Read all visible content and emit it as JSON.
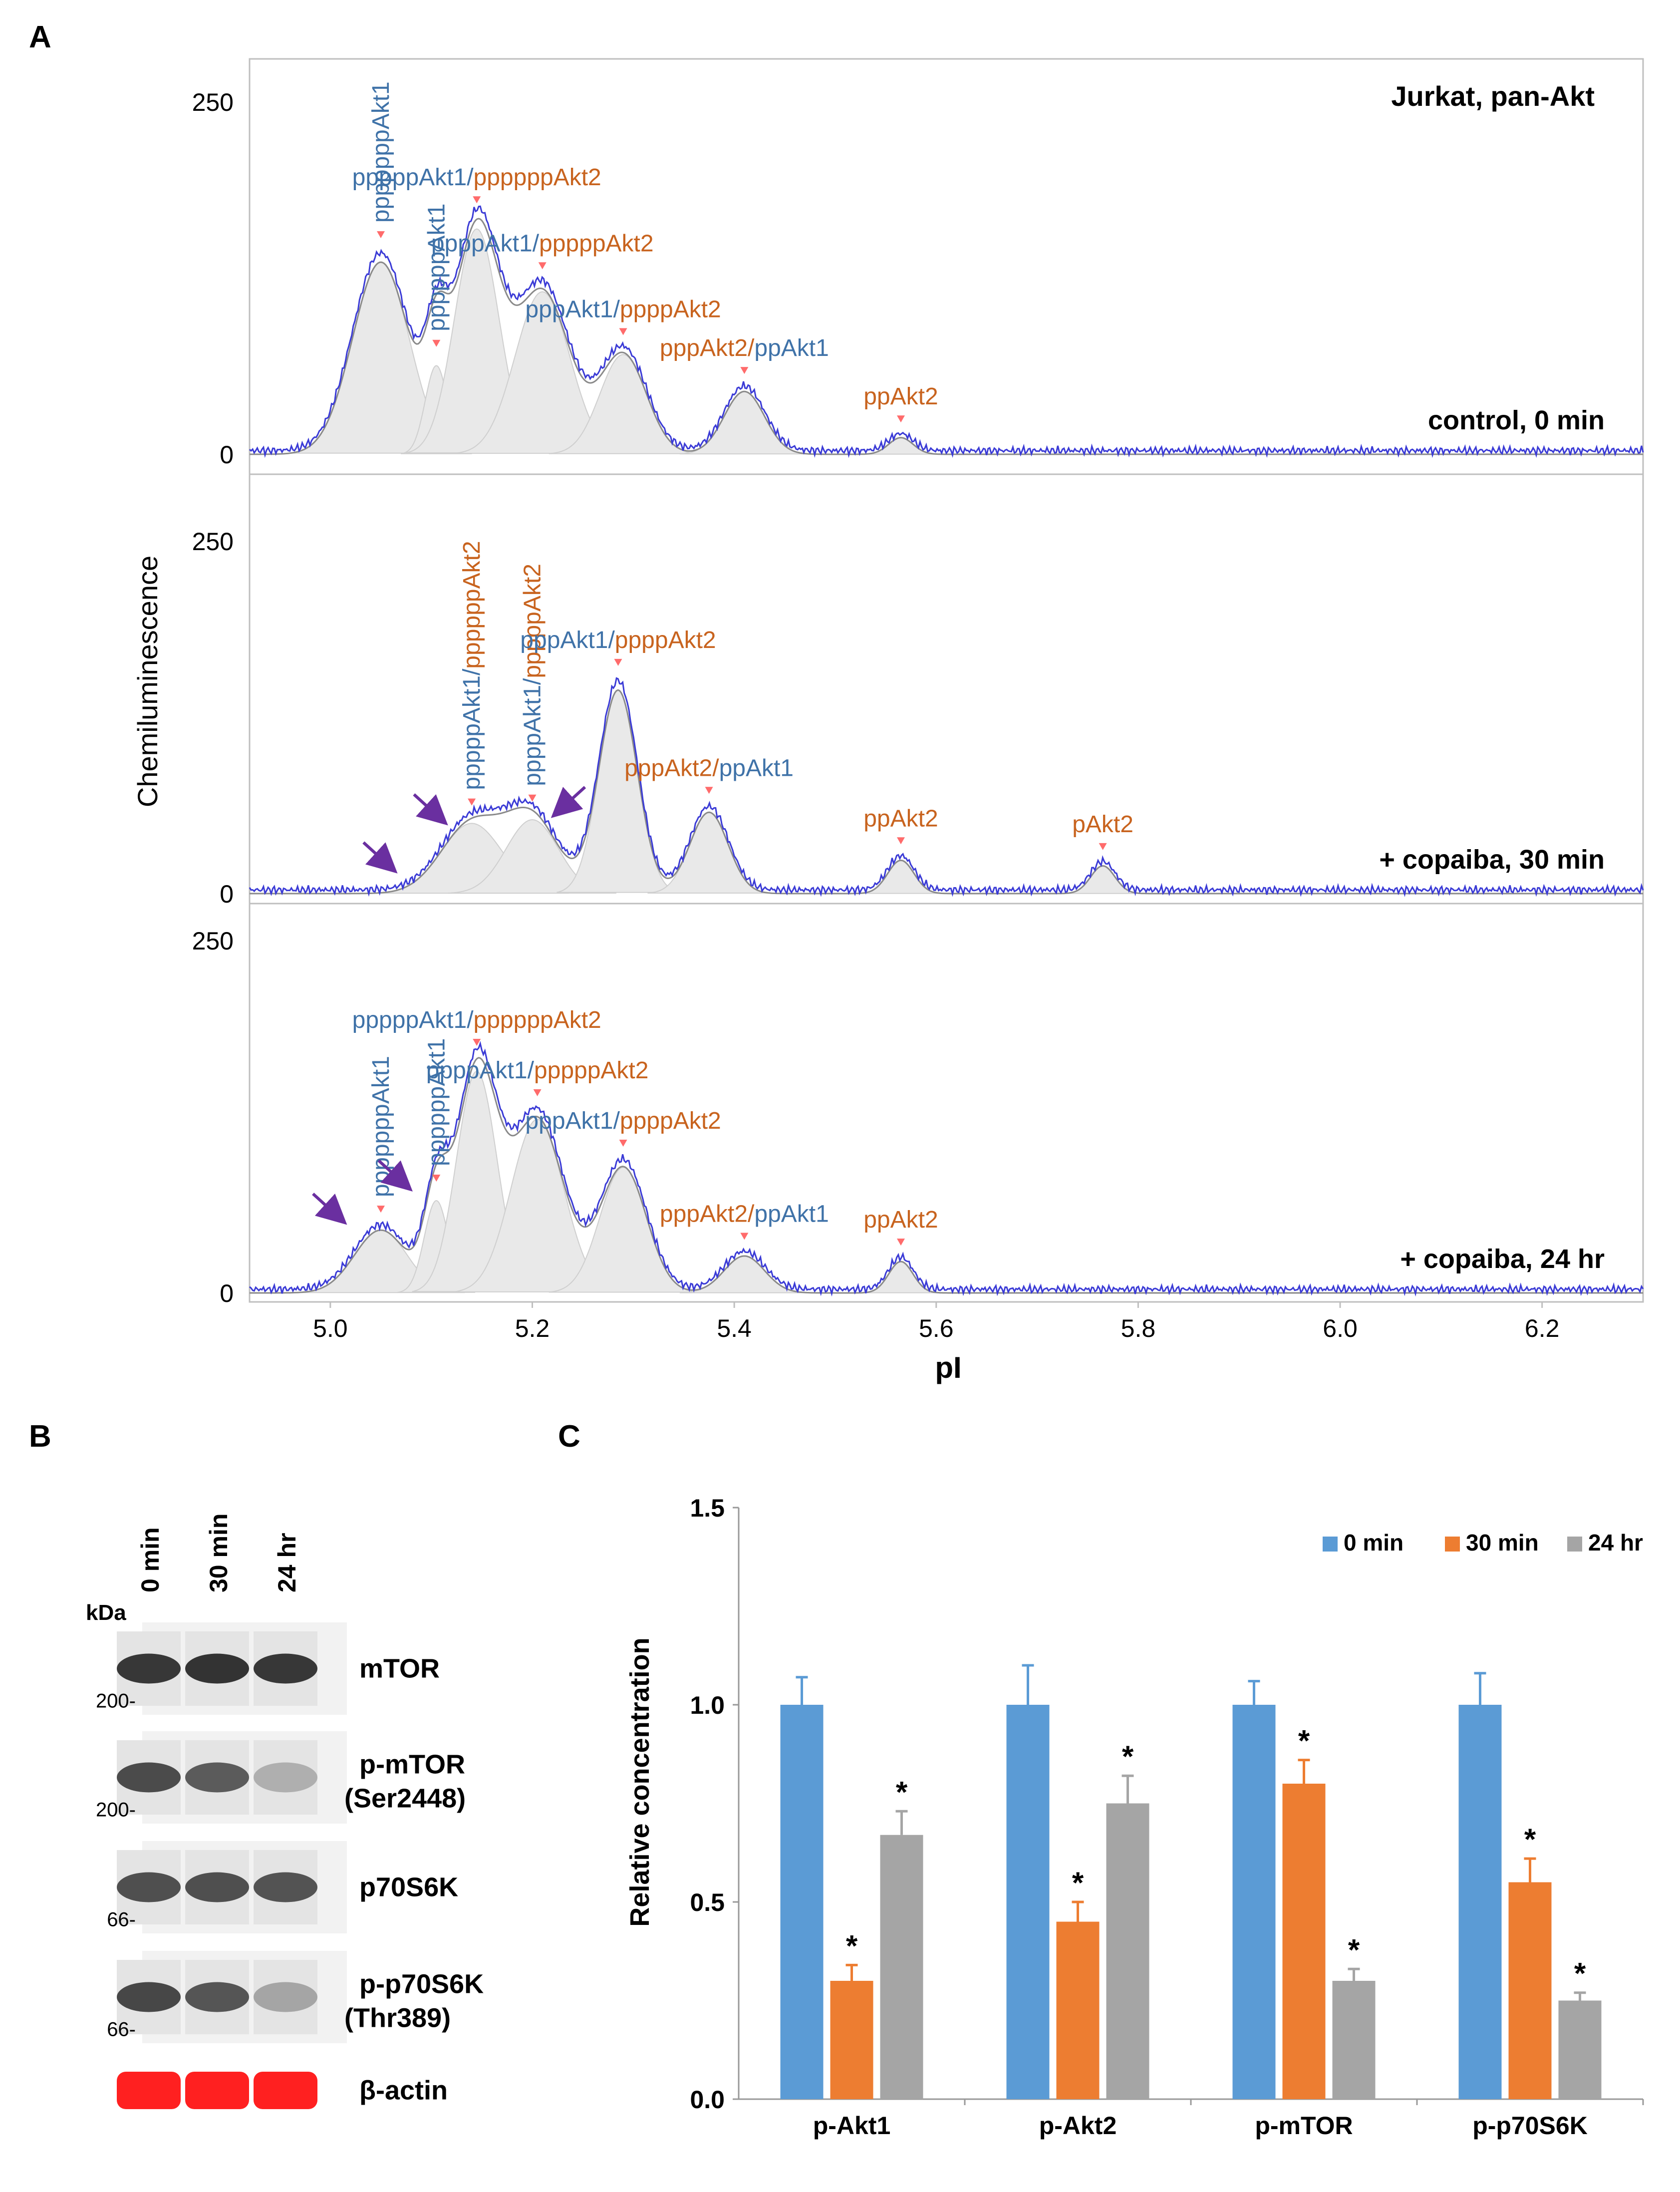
{
  "colors": {
    "akt1": "#3f72a8",
    "akt2": "#c8631e",
    "trace": "#3b3bd6",
    "fit": "#8a8a8a",
    "peak_fill": "#e9e9e9",
    "arrow": "#6a2fa0",
    "marker": "#ff6b6b",
    "bar_0min": "#5b9bd5",
    "bar_30min": "#ed7d31",
    "bar_24hr": "#a5a5a5",
    "actin": "#ff2020"
  },
  "panel_a": {
    "letter": "A",
    "ylabel": "Chemiluminescence",
    "xlabel": "pI",
    "cell_label": "Jurkat, pan-Akt",
    "x_ticks": [
      "5.0",
      "5.2",
      "5.4",
      "5.6",
      "5.8",
      "6.0",
      "6.2"
    ],
    "xlim": [
      4.92,
      6.3
    ],
    "y_top_label": "250",
    "y_bottom_label": "0",
    "subpanels": [
      {
        "condition": "control, 0 min",
        "peaks": [
          {
            "pI": 5.05,
            "h": 0.52,
            "w": 0.028
          },
          {
            "pI": 5.105,
            "h": 0.24,
            "w": 0.011
          },
          {
            "pI": 5.145,
            "h": 0.61,
            "w": 0.022
          },
          {
            "pI": 5.21,
            "h": 0.44,
            "w": 0.027
          },
          {
            "pI": 5.29,
            "h": 0.27,
            "w": 0.023
          },
          {
            "pI": 5.41,
            "h": 0.17,
            "w": 0.02
          },
          {
            "pI": 5.565,
            "h": 0.045,
            "w": 0.012
          }
        ],
        "labels": [
          {
            "pI": 5.05,
            "vertical": true,
            "parts": [
              {
                "t": "pppppppAkt1",
                "c": "akt1"
              }
            ]
          },
          {
            "pI": 5.105,
            "vertical": true,
            "parts": [
              {
                "t": "ppppppAkt1",
                "c": "akt1"
              }
            ]
          },
          {
            "pI": 5.145,
            "vertical": false,
            "parts": [
              {
                "t": "pppppAkt1",
                "c": "akt1"
              },
              {
                "t": "/",
                "c": "akt1"
              },
              {
                "t": "ppppppAkt2",
                "c": "akt2"
              }
            ]
          },
          {
            "pI": 5.21,
            "vertical": false,
            "parts": [
              {
                "t": "ppppAkt1",
                "c": "akt1"
              },
              {
                "t": "/",
                "c": "akt1"
              },
              {
                "t": "pppppAkt2",
                "c": "akt2"
              }
            ]
          },
          {
            "pI": 5.29,
            "vertical": false,
            "parts": [
              {
                "t": "pppAkt1",
                "c": "akt1"
              },
              {
                "t": "/",
                "c": "akt1"
              },
              {
                "t": "ppppAkt2",
                "c": "akt2"
              }
            ]
          },
          {
            "pI": 5.41,
            "vertical": false,
            "parts": [
              {
                "t": "pppAkt2",
                "c": "akt2"
              },
              {
                "t": "/",
                "c": "akt2"
              },
              {
                "t": "ppAkt1",
                "c": "akt1"
              }
            ]
          },
          {
            "pI": 5.565,
            "vertical": false,
            "parts": [
              {
                "t": "ppAkt2",
                "c": "akt2"
              }
            ]
          }
        ],
        "arrows": []
      },
      {
        "condition": "+ copaiba,  30 min",
        "peaks": [
          {
            "pI": 5.14,
            "h": 0.19,
            "w": 0.03
          },
          {
            "pI": 5.2,
            "h": 0.2,
            "w": 0.026
          },
          {
            "pI": 5.285,
            "h": 0.55,
            "w": 0.019
          },
          {
            "pI": 5.375,
            "h": 0.22,
            "w": 0.019
          },
          {
            "pI": 5.565,
            "h": 0.09,
            "w": 0.013
          },
          {
            "pI": 5.765,
            "h": 0.075,
            "w": 0.012
          }
        ],
        "labels": [
          {
            "pI": 5.14,
            "vertical": true,
            "parts": [
              {
                "t": "pppppAkt1",
                "c": "akt1"
              },
              {
                "t": "/",
                "c": "akt1"
              },
              {
                "t": "ppppppAkt2",
                "c": "akt2"
              }
            ]
          },
          {
            "pI": 5.2,
            "vertical": true,
            "parts": [
              {
                "t": "ppppAkt1",
                "c": "akt1"
              },
              {
                "t": "/",
                "c": "akt1"
              },
              {
                "t": "pppppAkt2",
                "c": "akt2"
              }
            ]
          },
          {
            "pI": 5.285,
            "vertical": false,
            "parts": [
              {
                "t": "pppAkt1",
                "c": "akt1"
              },
              {
                "t": "/",
                "c": "akt1"
              },
              {
                "t": "ppppAkt2",
                "c": "akt2"
              }
            ]
          },
          {
            "pI": 5.375,
            "vertical": false,
            "parts": [
              {
                "t": "pppAkt2",
                "c": "akt2"
              },
              {
                "t": "/",
                "c": "akt2"
              },
              {
                "t": "ppAkt1",
                "c": "akt1"
              }
            ]
          },
          {
            "pI": 5.565,
            "vertical": false,
            "parts": [
              {
                "t": "ppAkt2",
                "c": "akt2"
              }
            ]
          },
          {
            "pI": 5.765,
            "vertical": false,
            "parts": [
              {
                "t": "pAkt2",
                "c": "akt2"
              }
            ]
          }
        ],
        "arrows": [
          {
            "pI": 5.06,
            "level": 0.06,
            "dir": "down-right"
          },
          {
            "pI": 5.11,
            "level": 0.19,
            "dir": "down-right"
          },
          {
            "pI": 5.225,
            "level": 0.21,
            "dir": "down-left"
          }
        ]
      },
      {
        "condition": "+ copaiba,  24 hr",
        "peaks": [
          {
            "pI": 5.05,
            "h": 0.17,
            "w": 0.026
          },
          {
            "pI": 5.105,
            "h": 0.25,
            "w": 0.012
          },
          {
            "pI": 5.145,
            "h": 0.6,
            "w": 0.02
          },
          {
            "pI": 5.205,
            "h": 0.47,
            "w": 0.026
          },
          {
            "pI": 5.29,
            "h": 0.34,
            "w": 0.023
          },
          {
            "pI": 5.41,
            "h": 0.1,
            "w": 0.02
          },
          {
            "pI": 5.565,
            "h": 0.085,
            "w": 0.012
          }
        ],
        "labels": [
          {
            "pI": 5.05,
            "vertical": true,
            "parts": [
              {
                "t": "pppppppAkt1",
                "c": "akt1"
              }
            ]
          },
          {
            "pI": 5.105,
            "vertical": true,
            "parts": [
              {
                "t": "ppppppAkt1",
                "c": "akt1"
              }
            ]
          },
          {
            "pI": 5.145,
            "vertical": false,
            "parts": [
              {
                "t": "pppppAkt1",
                "c": "akt1"
              },
              {
                "t": "/",
                "c": "akt1"
              },
              {
                "t": "ppppppAkt2",
                "c": "akt2"
              }
            ]
          },
          {
            "pI": 5.205,
            "vertical": false,
            "parts": [
              {
                "t": "ppppAkt1",
                "c": "akt1"
              },
              {
                "t": "/",
                "c": "akt1"
              },
              {
                "t": "pppppAkt2",
                "c": "akt2"
              }
            ]
          },
          {
            "pI": 5.29,
            "vertical": false,
            "parts": [
              {
                "t": "pppAkt1",
                "c": "akt1"
              },
              {
                "t": "/",
                "c": "akt1"
              },
              {
                "t": "ppppAkt2",
                "c": "akt2"
              }
            ]
          },
          {
            "pI": 5.41,
            "vertical": false,
            "parts": [
              {
                "t": "pppAkt2",
                "c": "akt2"
              },
              {
                "t": "/",
                "c": "akt2"
              },
              {
                "t": "ppAkt1",
                "c": "akt1"
              }
            ]
          },
          {
            "pI": 5.565,
            "vertical": false,
            "parts": [
              {
                "t": "ppAkt2",
                "c": "akt2"
              }
            ]
          }
        ],
        "arrows": [
          {
            "pI": 5.01,
            "level": 0.19,
            "dir": "down-right"
          },
          {
            "pI": 5.075,
            "level": 0.28,
            "dir": "down-right"
          }
        ]
      }
    ]
  },
  "panel_b": {
    "letter": "B",
    "kda_label": "kDa",
    "lanes": [
      "0 min",
      "30 min",
      "24 hr"
    ],
    "blots": [
      {
        "name": "mTOR",
        "sub": "",
        "marker": "200",
        "intensity": [
          0.9,
          0.92,
          0.9
        ],
        "band": "dark"
      },
      {
        "name": "p-mTOR",
        "sub": "(Ser2448)",
        "marker": "200",
        "intensity": [
          0.8,
          0.72,
          0.3
        ],
        "band": "dark"
      },
      {
        "name": "p70S6K",
        "sub": "",
        "marker": "66",
        "intensity": [
          0.78,
          0.78,
          0.76
        ],
        "band": "dark"
      },
      {
        "name": "p-p70S6K",
        "sub": "(Thr389)",
        "marker": "66",
        "intensity": [
          0.82,
          0.75,
          0.35
        ],
        "band": "dark"
      },
      {
        "name": "β-actin",
        "sub": "",
        "marker": "",
        "intensity": [
          1.0,
          1.0,
          1.0
        ],
        "band": "red"
      }
    ]
  },
  "panel_c": {
    "letter": "C",
    "chart_data": {
      "type": "bar",
      "categories": [
        "p-Akt1",
        "p-Akt2",
        "p-mTOR",
        "p-p70S6K"
      ],
      "series": [
        {
          "name": "0  min",
          "values": [
            1.0,
            1.0,
            1.0,
            1.0
          ],
          "errors": [
            0.07,
            0.1,
            0.06,
            0.08
          ],
          "significant": [
            false,
            false,
            false,
            false
          ]
        },
        {
          "name": "30 min",
          "values": [
            0.3,
            0.45,
            0.8,
            0.55
          ],
          "errors": [
            0.04,
            0.05,
            0.06,
            0.06
          ],
          "significant": [
            true,
            true,
            true,
            true
          ]
        },
        {
          "name": "24 hr",
          "values": [
            0.67,
            0.75,
            0.3,
            0.25
          ],
          "errors": [
            0.06,
            0.07,
            0.03,
            0.02
          ],
          "significant": [
            true,
            true,
            true,
            true
          ]
        }
      ],
      "ylabel": "Relative  concentration",
      "ylim": [
        0.0,
        1.5
      ],
      "y_ticks": [
        "0.0",
        "0.5",
        "1.0",
        "1.5"
      ],
      "significance_marker": "*",
      "legend_position": "top-right"
    }
  }
}
